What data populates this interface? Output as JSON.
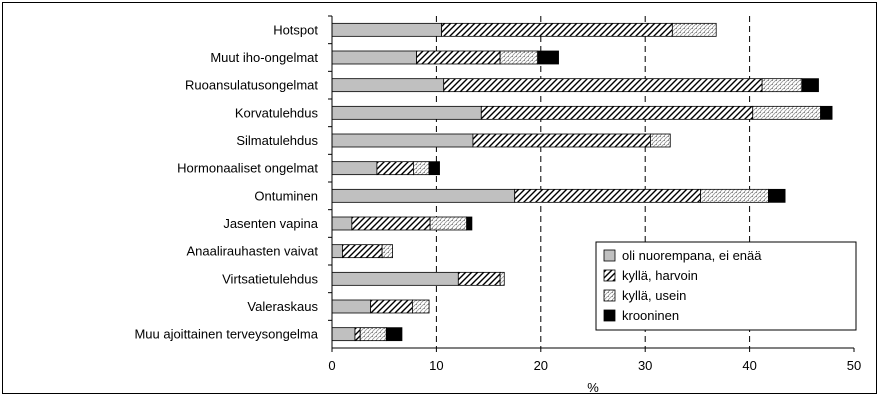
{
  "chart_data": {
    "type": "bar",
    "orientation": "horizontal",
    "stacked": true,
    "categories": [
      "Hotspot",
      "Muut iho-ongelmat",
      "Ruoansulatusongelmat",
      "Korvatulehdus",
      "Silmatulehdus",
      "Hormonaaliset ongelmat",
      "Ontuminen",
      "Jasenten vapina",
      "Anaalirauhasten vaivat",
      "Virtsatietulehdus",
      "Valeraskaus",
      "Muu ajoittainen terveysongelma"
    ],
    "series": [
      {
        "name": "oli nuorempana, ei enää",
        "pattern": "solid-gray",
        "values": [
          10.5,
          8.1,
          10.7,
          14.3,
          13.5,
          4.3,
          17.5,
          1.9,
          1.0,
          12.1,
          3.7,
          2.2
        ]
      },
      {
        "name": "kyllä, harvoin",
        "pattern": "diagonal-hatch",
        "values": [
          22.1,
          8.0,
          30.5,
          26.0,
          17.0,
          3.5,
          17.8,
          7.5,
          3.8,
          4.0,
          4.0,
          0.5
        ]
      },
      {
        "name": "kyllä, usein",
        "pattern": "light-dots",
        "values": [
          4.2,
          3.6,
          3.8,
          6.5,
          1.9,
          1.5,
          6.5,
          3.5,
          1.0,
          0.4,
          1.6,
          2.5
        ]
      },
      {
        "name": "krooninen",
        "pattern": "solid-black",
        "values": [
          0.0,
          2.0,
          1.6,
          1.1,
          0.0,
          1.0,
          1.6,
          0.5,
          0.0,
          0.0,
          0.0,
          1.5
        ]
      }
    ],
    "xlabel": "%",
    "ylabel": "",
    "xlim": [
      0,
      50
    ],
    "xticks": [
      0,
      10,
      20,
      30,
      40,
      50
    ],
    "gridlines": {
      "x": [
        10,
        20,
        30,
        40
      ],
      "style": "dashed"
    },
    "legend": {
      "position": "bottom-right"
    },
    "colors": {
      "solid_gray": "#c0c0c0",
      "solid_black": "#000000",
      "hatch": "#000000",
      "dots": "#808080"
    }
  }
}
